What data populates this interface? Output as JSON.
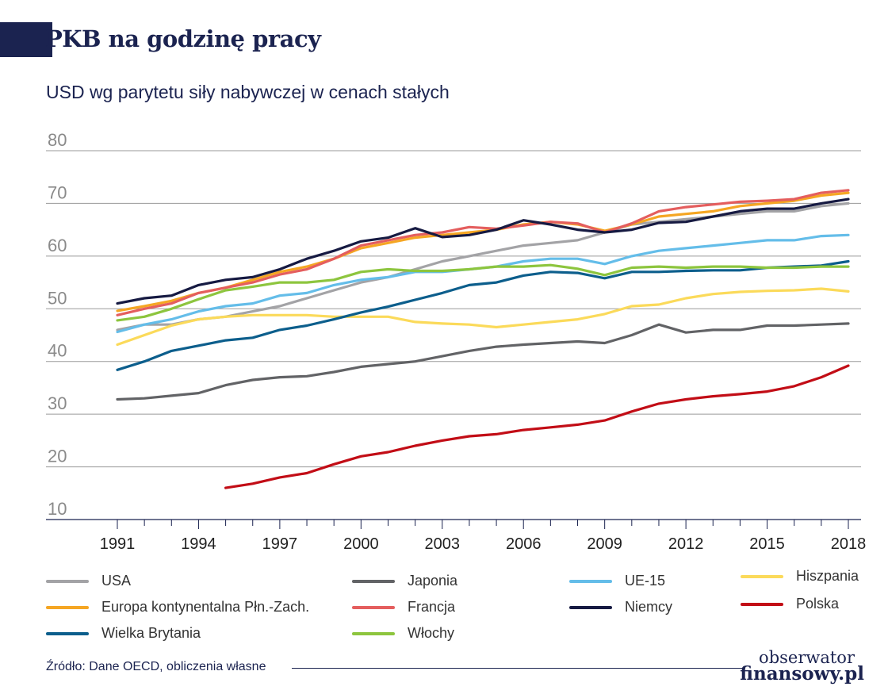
{
  "header": {
    "title": "PKB na godzinę pracy",
    "subtitle": "USD wg parytetu siły nabywczej w cenach stałych"
  },
  "footer": {
    "source": "Źródło: Dane OECD, obliczenia własne",
    "logo_line1": "obserwator",
    "logo_line2": "finansowy.pl",
    "accent_color": "#1b2350"
  },
  "chart_data": {
    "type": "line",
    "title": "PKB na godzinę pracy",
    "subtitle": "USD wg parytetu siły nabywczej w cenach stałych",
    "xlabel": "",
    "ylabel": "",
    "ylim": [
      10,
      80
    ],
    "yticks": [
      10,
      20,
      30,
      40,
      50,
      60,
      70,
      80
    ],
    "xticks": [
      1991,
      1994,
      1997,
      2000,
      2003,
      2006,
      2009,
      2012,
      2015,
      2018
    ],
    "grid": true,
    "legend_position": "bottom",
    "x": [
      1991,
      1992,
      1993,
      1994,
      1995,
      1996,
      1997,
      1998,
      1999,
      2000,
      2001,
      2002,
      2003,
      2004,
      2005,
      2006,
      2007,
      2008,
      2009,
      2010,
      2011,
      2012,
      2013,
      2014,
      2015,
      2016,
      2017,
      2018
    ],
    "series": [
      {
        "name": "USA",
        "color": "#a3a3a6",
        "values": [
          46.0,
          47.0,
          47.0,
          48.0,
          48.5,
          49.5,
          50.5,
          52.0,
          53.5,
          55.0,
          56.0,
          57.5,
          59.0,
          60.0,
          61.0,
          62.0,
          62.5,
          63.0,
          64.5,
          66.0,
          66.5,
          67.0,
          67.5,
          68.0,
          68.5,
          68.5,
          69.5,
          70.0
        ]
      },
      {
        "name": "Japonia",
        "color": "#626366",
        "values": [
          32.8,
          33.0,
          33.5,
          34.0,
          35.5,
          36.5,
          37.0,
          37.2,
          38.0,
          39.0,
          39.5,
          40.0,
          41.0,
          42.0,
          42.8,
          43.2,
          43.5,
          43.8,
          43.5,
          45.0,
          47.0,
          45.5,
          46.0,
          46.0,
          46.8,
          46.8,
          47.0,
          47.2
        ]
      },
      {
        "name": "UE-15",
        "color": "#64bde9",
        "values": [
          45.6,
          47.0,
          48.0,
          49.5,
          50.5,
          51.0,
          52.5,
          53.0,
          54.5,
          55.5,
          56.0,
          57.0,
          57.0,
          57.5,
          58.0,
          59.0,
          59.5,
          59.5,
          58.5,
          60.0,
          61.0,
          61.5,
          62.0,
          62.5,
          63.0,
          63.0,
          63.8,
          64.0
        ]
      },
      {
        "name": "Hiszpania",
        "color": "#fbda5a",
        "values": [
          43.2,
          45.0,
          46.8,
          48.0,
          48.5,
          48.8,
          48.8,
          48.8,
          48.5,
          48.5,
          48.5,
          47.5,
          47.2,
          47.0,
          46.5,
          47.0,
          47.5,
          48.0,
          49.0,
          50.5,
          50.8,
          52.0,
          52.8,
          53.2,
          53.4,
          53.5,
          53.8,
          53.3
        ]
      },
      {
        "name": "Europa kontynentalna Płn.-Zach.",
        "color": "#f5a623",
        "values": [
          49.6,
          50.5,
          51.5,
          53.0,
          54.0,
          55.5,
          57.0,
          58.0,
          59.5,
          61.5,
          62.5,
          63.5,
          64.0,
          64.5,
          65.0,
          66.0,
          66.5,
          66.0,
          64.8,
          66.0,
          67.5,
          68.0,
          68.5,
          69.5,
          70.0,
          70.5,
          71.5,
          72.0
        ]
      },
      {
        "name": "Francja",
        "color": "#e45e5e",
        "values": [
          48.8,
          50.0,
          51.0,
          53.0,
          54.0,
          55.0,
          56.5,
          57.5,
          59.5,
          62.0,
          63.0,
          64.0,
          64.5,
          65.5,
          65.2,
          65.8,
          66.5,
          66.2,
          64.5,
          66.2,
          68.5,
          69.3,
          69.8,
          70.3,
          70.5,
          70.8,
          72.0,
          72.5
        ]
      },
      {
        "name": "Niemcy",
        "color": "#161a42",
        "values": [
          51.0,
          52.0,
          52.5,
          54.5,
          55.5,
          56.0,
          57.5,
          59.5,
          61.0,
          62.8,
          63.5,
          65.3,
          63.6,
          64.0,
          65.0,
          66.8,
          66.0,
          65.0,
          64.5,
          65.0,
          66.3,
          66.5,
          67.5,
          68.5,
          69.0,
          69.0,
          70.0,
          70.8
        ]
      },
      {
        "name": "Polska",
        "color": "#c20d16",
        "values": [
          null,
          null,
          null,
          null,
          16.0,
          16.8,
          18.0,
          18.8,
          20.5,
          22.0,
          22.8,
          24.0,
          25.0,
          25.8,
          26.2,
          27.0,
          27.5,
          28.0,
          28.8,
          30.5,
          32.0,
          32.8,
          33.4,
          33.8,
          34.3,
          35.3,
          37.0,
          39.2
        ]
      },
      {
        "name": "Wielka Brytania",
        "color": "#0c5e8c",
        "values": [
          38.4,
          40.0,
          42.0,
          43.0,
          44.0,
          44.5,
          46.0,
          46.8,
          48.0,
          49.3,
          50.4,
          51.7,
          53.0,
          54.5,
          55.0,
          56.3,
          57.0,
          56.8,
          55.8,
          57.0,
          57.0,
          57.2,
          57.3,
          57.3,
          57.8,
          58.0,
          58.2,
          59.0
        ]
      },
      {
        "name": "Włochy",
        "color": "#8dc53e",
        "values": [
          47.8,
          48.5,
          50.0,
          51.8,
          53.5,
          54.2,
          55.0,
          55.0,
          55.5,
          57.0,
          57.5,
          57.2,
          57.2,
          57.5,
          58.0,
          58.0,
          58.3,
          57.6,
          56.4,
          57.8,
          58.0,
          57.8,
          58.0,
          58.0,
          57.8,
          57.8,
          58.0,
          58.0
        ]
      }
    ]
  }
}
